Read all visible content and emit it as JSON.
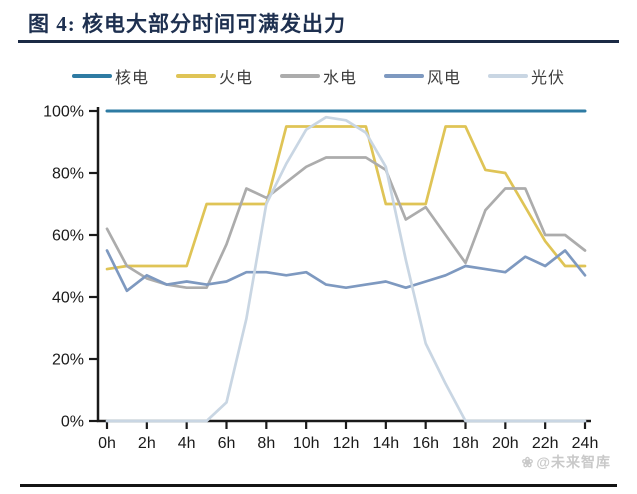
{
  "figure": {
    "title": "图 4: 核电大部分时间可满发出力"
  },
  "watermark": {
    "icon": "❀",
    "text": "@未来智库"
  },
  "colors": {
    "title": "#1e3050",
    "title_rule": "#1b2a45",
    "axis": "#1a1a1a",
    "tick_label": "#1a1a1a",
    "watermark": "#c9c9c9",
    "bottom_rule": "#141414"
  },
  "chart_data": {
    "type": "line",
    "title": "核电大部分时间可满发出力",
    "xlabel": "",
    "ylabel": "",
    "ylim": [
      0,
      100
    ],
    "grid": false,
    "legend_position": "top",
    "x": [
      0,
      1,
      2,
      3,
      4,
      5,
      6,
      7,
      8,
      9,
      10,
      11,
      12,
      13,
      14,
      15,
      16,
      17,
      18,
      19,
      20,
      21,
      22,
      23,
      24
    ],
    "x_tick_hours": [
      0,
      2,
      4,
      6,
      8,
      10,
      12,
      14,
      16,
      18,
      20,
      22,
      24
    ],
    "x_tick_labels": [
      "0h",
      "2h",
      "4h",
      "6h",
      "8h",
      "10h",
      "12h",
      "14h",
      "16h",
      "18h",
      "20h",
      "22h",
      "24h"
    ],
    "y_ticks": [
      0,
      20,
      40,
      60,
      80,
      100
    ],
    "y_tick_labels": [
      "0%",
      "20%",
      "40%",
      "60%",
      "80%",
      "100%"
    ],
    "series": [
      {
        "key": "nuclear",
        "name": "核电",
        "color": "#2e7ba3",
        "values": [
          100,
          100,
          100,
          100,
          100,
          100,
          100,
          100,
          100,
          100,
          100,
          100,
          100,
          100,
          100,
          100,
          100,
          100,
          100,
          100,
          100,
          100,
          100,
          100,
          100
        ]
      },
      {
        "key": "thermal",
        "name": "火电",
        "color": "#dfc456",
        "values": [
          49,
          50,
          50,
          50,
          50,
          70,
          70,
          70,
          70,
          95,
          95,
          95,
          95,
          95,
          70,
          70,
          70,
          95,
          95,
          81,
          80,
          69,
          58,
          50,
          50
        ]
      },
      {
        "key": "hydro",
        "name": "水电",
        "color": "#acacac",
        "values": [
          62,
          50,
          46,
          44,
          43,
          43,
          57,
          75,
          72,
          77,
          82,
          85,
          85,
          85,
          81,
          65,
          69,
          60,
          51,
          68,
          75,
          75,
          60,
          60,
          55
        ]
      },
      {
        "key": "wind",
        "name": "风电",
        "color": "#7e99c0",
        "values": [
          55,
          42,
          47,
          44,
          45,
          44,
          45,
          48,
          48,
          47,
          48,
          44,
          43,
          44,
          45,
          43,
          45,
          47,
          50,
          49,
          48,
          53,
          50,
          55,
          47
        ]
      },
      {
        "key": "solar",
        "name": "光伏",
        "color": "#c9d6e3",
        "values": [
          0,
          0,
          0,
          0,
          0,
          0,
          6,
          33,
          70,
          83,
          94,
          98,
          97,
          93,
          82,
          52,
          25,
          12,
          0,
          0,
          0,
          0,
          0,
          0,
          0
        ]
      }
    ]
  }
}
